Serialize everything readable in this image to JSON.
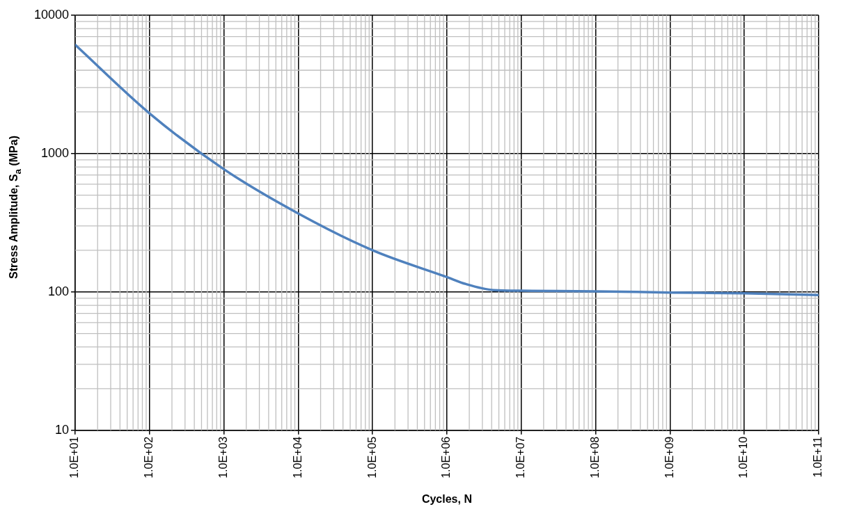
{
  "chart_data": {
    "type": "line",
    "xlabel": "Cycles, N",
    "ylabel": "Stress Amplitude, S$_{a}$ (MPa)",
    "log": "xy",
    "grid": true,
    "legend": false,
    "marker": "none",
    "line_style": "solid",
    "xlim": [
      10,
      100000000000
    ],
    "ylim": [
      10,
      10000
    ],
    "xticks": [
      {
        "value": 10,
        "label": "1.0E+01"
      },
      {
        "value": 100,
        "label": "1.0E+02"
      },
      {
        "value": 1000,
        "label": "1.0E+03"
      },
      {
        "value": 10000,
        "label": "1.0E+04"
      },
      {
        "value": 100000,
        "label": "1.0E+05"
      },
      {
        "value": 1000000,
        "label": "1.0E+06"
      },
      {
        "value": 10000000,
        "label": "1.0E+07"
      },
      {
        "value": 100000000,
        "label": "1.0E+08"
      },
      {
        "value": 1000000000,
        "label": "1.0E+09"
      },
      {
        "value": 10000000000,
        "label": "1.0E+10"
      },
      {
        "value": 100000000000,
        "label": "1.0E+11"
      }
    ],
    "yticks": [
      10,
      100,
      1000,
      10000
    ],
    "x": [
      10,
      100,
      1000,
      10000,
      100000,
      1000000,
      1800000,
      4300000,
      10000000,
      100000000,
      1000000000,
      10000000000,
      100000000000
    ],
    "series": [
      {
        "color": "#4f81bd",
        "values": [
          6100,
          1950,
          770,
          369,
          200,
          128,
          114,
          103,
          102,
          101,
          99,
          97.6,
          95
        ]
      }
    ]
  }
}
